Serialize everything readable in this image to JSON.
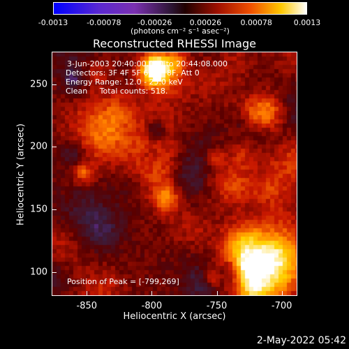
{
  "chart_data": {
    "type": "heatmap",
    "title": "Reconstructed RHESSI Image",
    "xlabel": "Heliocentric X (arcsec)",
    "ylabel": "Heliocentric Y (arcsec)",
    "xlim": [
      -877,
      -688
    ],
    "ylim": [
      81,
      276
    ],
    "xticks": [
      "-850",
      "-800",
      "-750",
      "-700"
    ],
    "xtick_values": [
      -850,
      -800,
      -750,
      -700
    ],
    "yticks": [
      "250",
      "200",
      "150",
      "100"
    ],
    "ytick_values": [
      250,
      200,
      150,
      100
    ],
    "colorbar": {
      "ticks": [
        "-0.0013",
        "-0.00078",
        "-0.00026",
        "0.00026",
        "0.00078",
        "0.0013"
      ],
      "tick_values": [
        -0.0013,
        -0.00078,
        -0.00026,
        0.00026,
        0.00078,
        0.0013
      ],
      "units": "(photons cm⁻² s⁻¹ asec⁻²)"
    },
    "annotations": {
      "time": "3-Jun-2003 20:40:00.000 to 20:44:08.000",
      "detectors": "Detectors: 3F 4F 5F 6F 7F 8F, Att 0",
      "energy": "Energy Range: 12.0 - 25.0 keV",
      "clean": "Clean     Total counts: 518.",
      "peak": "Position of Peak = [-799,269]"
    },
    "peak": {
      "x": -799,
      "y": 269
    },
    "colormap": [
      "#0000ff",
      "#7a30b8",
      "#3a1f40",
      "#5a0000",
      "#c81800",
      "#ff7800",
      "#ffd000",
      "#ffffff"
    ]
  },
  "footer_timestamp": "2-May-2022 05:42"
}
